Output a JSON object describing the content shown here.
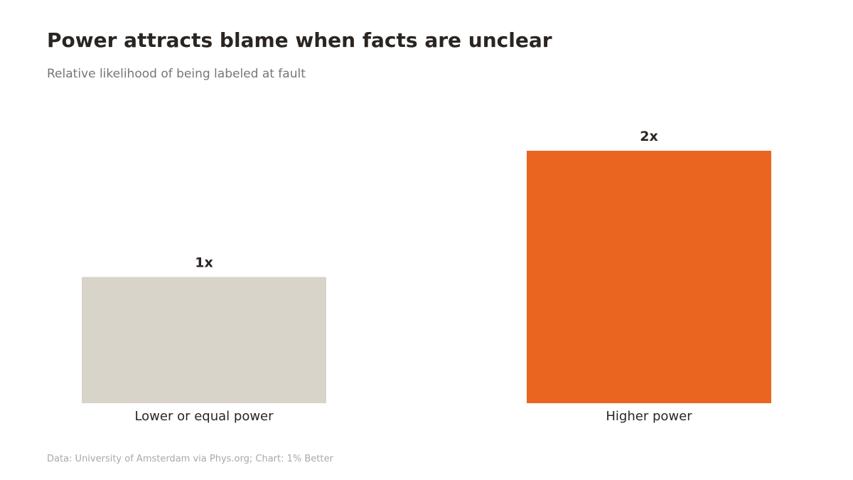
{
  "header": {
    "title": "Power attracts blame when facts are unclear",
    "subtitle": "Relative likelihood of being labeled at fault"
  },
  "footer": {
    "source": "Data: University of Amsterdam via Phys.org; Chart: 1% Better"
  },
  "chart_data": {
    "type": "bar",
    "title": "Power attracts blame when facts are unclear",
    "subtitle": "Relative likelihood of being labeled at fault",
    "categories": [
      "Lower or equal power",
      "Higher power"
    ],
    "values": [
      1,
      2
    ],
    "value_labels": [
      "1x",
      "2x"
    ],
    "colors": [
      "#d9d4c9",
      "#ea6520"
    ],
    "ylim": [
      0,
      2
    ],
    "grid": false,
    "legend": "none"
  },
  "colors": {
    "title": "#2b2522",
    "subtitle": "#767676",
    "label": "#2b2522",
    "source": "#a9a9a9"
  }
}
